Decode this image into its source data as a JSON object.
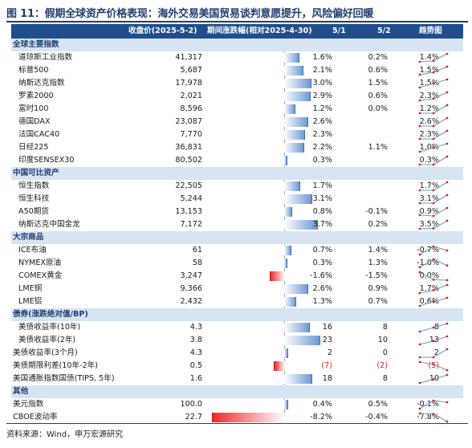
{
  "title": "图 11：假期全球资产价格表现：海外交易美国贸易谈判意愿提升，风险偏好回暖",
  "header": {
    "col_name": "",
    "col_price": "收盘价(2025-5-2)",
    "col_period": "期间涨跌幅(相对2025-4-30)",
    "col_d1": "5/1",
    "col_d2": "5/2",
    "col_trend": "趋势图"
  },
  "colors": {
    "header_bg": "#1f4e8c",
    "section_bg": "#d6e4f3",
    "positive_bar": "#6e9ad2",
    "negative_bar": "#ee2a2a",
    "negative_text": "#e02020"
  },
  "sections": [
    {
      "title": "全球主要指数",
      "bar_scale": 4.0,
      "rows": [
        {
          "name": "道琼斯工业指数",
          "price": "41,317",
          "period": "1.6%",
          "period_value": 1.6,
          "d1": "0.2%",
          "d2": "1.4%",
          "neg": false,
          "trend": [
            0,
            0.2,
            1.6
          ]
        },
        {
          "name": "标普500",
          "price": "5,687",
          "period": "2.1%",
          "period_value": 2.1,
          "d1": "0.6%",
          "d2": "1.5%",
          "neg": false,
          "trend": [
            0,
            0.6,
            2.1
          ]
        },
        {
          "name": "纳斯达克指数",
          "price": "17,978",
          "period": "3.0%",
          "period_value": 3.0,
          "d1": "1.5%",
          "d2": "1.5%",
          "neg": false,
          "trend": [
            0,
            1.5,
            3.0
          ]
        },
        {
          "name": "罗素2000",
          "price": "2,021",
          "period": "2.9%",
          "period_value": 2.9,
          "d1": "0.6%",
          "d2": "2.3%",
          "neg": false,
          "trend": [
            0,
            0.6,
            2.9
          ]
        },
        {
          "name": "富时100",
          "price": "8,596",
          "period": "1.2%",
          "period_value": 1.2,
          "d1": "0.0%",
          "d2": "1.2%",
          "neg": false,
          "trend": [
            0,
            0.0,
            1.2
          ]
        },
        {
          "name": "德国DAX",
          "price": "23,087",
          "period": "2.6%",
          "period_value": 2.6,
          "d1": "",
          "d2": "2.6%",
          "neg": false,
          "trend": [
            0,
            0,
            2.6
          ]
        },
        {
          "name": "法国CAC40",
          "price": "7,770",
          "period": "2.3%",
          "period_value": 2.3,
          "d1": "",
          "d2": "2.3%",
          "neg": false,
          "trend": [
            0,
            0,
            2.3
          ]
        },
        {
          "name": "日经225",
          "price": "36,831",
          "period": "2.2%",
          "period_value": 2.2,
          "d1": "1.1%",
          "d2": "1.0%",
          "neg": false,
          "trend": [
            0,
            1.1,
            2.2
          ]
        },
        {
          "name": "印度SENSEX30",
          "price": "80,502",
          "period": "0.3%",
          "period_value": 0.3,
          "d1": "",
          "d2": "0.3%",
          "neg": false,
          "trend": [
            0,
            0,
            0.3
          ]
        }
      ]
    },
    {
      "title": "中国可比资产",
      "bar_scale": 4.0,
      "rows": [
        {
          "name": "恒生指数",
          "price": "22,505",
          "period": "1.7%",
          "period_value": 1.7,
          "d1": "",
          "d2": "1.7%",
          "neg": false,
          "trend": [
            0,
            0,
            1.7
          ]
        },
        {
          "name": "恒生科技",
          "price": "5,244",
          "period": "3.1%",
          "period_value": 3.1,
          "d1": "",
          "d2": "3.1%",
          "neg": false,
          "trend": [
            0,
            0,
            3.1
          ]
        },
        {
          "name": "A50期货",
          "price": "13,153",
          "period": "0.8%",
          "period_value": 0.8,
          "d1": "-0.1%",
          "d2": "0.9%",
          "neg": false,
          "trend": [
            0,
            -0.1,
            0.8
          ]
        },
        {
          "name": "纳斯达克中国金龙",
          "price": "7,172",
          "period": "3.7%",
          "period_value": 3.7,
          "d1": "0.2%",
          "d2": "3.5%",
          "neg": false,
          "trend": [
            0,
            0.2,
            3.7
          ]
        }
      ]
    },
    {
      "title": "大宗商品",
      "bar_scale": 4.0,
      "rows": [
        {
          "name": "ICE布油",
          "price": "61",
          "period": "0.7%",
          "period_value": 0.7,
          "d1": "1.4%",
          "d2": "-0.7%",
          "neg": false,
          "trend": [
            0,
            1.4,
            0.7
          ]
        },
        {
          "name": "NYMEX原油",
          "price": "58",
          "period": "0.3%",
          "period_value": 0.3,
          "d1": "1.3%",
          "d2": "-1.0%",
          "neg": false,
          "trend": [
            0,
            1.3,
            0.3
          ]
        },
        {
          "name": "COMEX黄金",
          "price": "3,247",
          "period": "-1.6%",
          "period_value": -1.6,
          "d1": "-1.5%",
          "d2": "0.0%",
          "neg": false,
          "trend": [
            0,
            -1.5,
            -1.6
          ]
        },
        {
          "name": "LME铜",
          "price": "9,366",
          "period": "2.6%",
          "period_value": 2.6,
          "d1": "0.9%",
          "d2": "1.7%",
          "neg": false,
          "trend": [
            0,
            0.9,
            2.6
          ]
        },
        {
          "name": "LME铝",
          "price": "2,432",
          "period": "1.3%",
          "period_value": 1.3,
          "d1": "0.7%",
          "d2": "0.6%",
          "neg": false,
          "trend": [
            0,
            0.7,
            1.3
          ]
        }
      ]
    },
    {
      "title": "债券(涨跌绝对值/BP)",
      "bar_scale": 23,
      "rows": [
        {
          "name": "美债收益率(10年)",
          "price": "4.3",
          "period": "16",
          "period_value": 16,
          "d1": "8",
          "d2": "8",
          "neg": false,
          "trend": [
            0,
            8,
            16
          ]
        },
        {
          "name": "美债收益率(2年)",
          "price": "3.8",
          "period": "23",
          "period_value": 23,
          "d1": "10",
          "d2": "13",
          "neg": false,
          "trend": [
            0,
            10,
            23
          ]
        },
        {
          "name": "美债收益率(3个月)",
          "price": "4.3",
          "period": "2",
          "period_value": 2,
          "d1": "0",
          "d2": "2",
          "neg": false,
          "trend": [
            0,
            0,
            2
          ],
          "flush": true
        },
        {
          "name": "美债期限利差(10年-2年)",
          "price": "0.5",
          "period": "(7)",
          "period_value": -7,
          "d1": "(2)",
          "d2": "(5)",
          "neg": true,
          "trend": [
            0,
            -2,
            -7
          ],
          "flush": true
        },
        {
          "name": "美国通胀指数国债(TIPS, 5年)",
          "price": "1.6",
          "period": "18",
          "period_value": 18,
          "d1": "8",
          "d2": "10",
          "neg": false,
          "trend": [
            0,
            8,
            18
          ],
          "flush": true
        }
      ]
    },
    {
      "title": "其他",
      "bar_scale": 4.0,
      "rows": [
        {
          "name": "美元指数",
          "price": "100.0",
          "period": "0.4%",
          "period_value": 0.4,
          "d1": "0.5%",
          "d2": "-0.1%",
          "neg": false,
          "trend": [
            0,
            0.5,
            0.4
          ],
          "flush": true
        },
        {
          "name": "CBOE波动率",
          "price": "22.7",
          "period": "-8.2%",
          "period_value": -8.2,
          "d1": "-0.4%",
          "d2": "-7.8%",
          "neg": false,
          "trend": [
            0,
            -0.4,
            -8.2
          ],
          "flush": true
        }
      ]
    }
  ],
  "source": "资料来源：Wind，申万宏源研究"
}
